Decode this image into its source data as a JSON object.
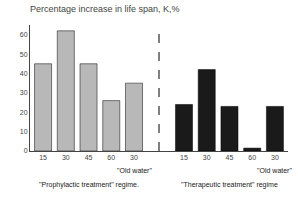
{
  "chart_data": {
    "type": "bar",
    "title": "Percentage increase in life span, K,%",
    "categories": [
      "15",
      "30",
      "45",
      "60",
      "30",
      "15",
      "30",
      "45",
      "60",
      "30"
    ],
    "values": [
      45,
      62,
      45,
      26,
      35,
      24,
      42,
      23,
      1.5,
      23
    ],
    "colors": [
      "#b8b8b8",
      "#b8b8b8",
      "#b8b8b8",
      "#b8b8b8",
      "#b8b8b8",
      "#1a1a1a",
      "#1a1a1a",
      "#1a1a1a",
      "#1a1a1a",
      "#1a1a1a"
    ],
    "ylim": [
      0,
      65
    ],
    "yticks": [
      0,
      10,
      20,
      30,
      40,
      50,
      60
    ],
    "grid": false,
    "annotations": [
      "\"Old water\"",
      "\"Old water\"",
      "\"Prophylactic treatment\" regime.",
      "\"Therapeutic treatment\" regime"
    ]
  }
}
